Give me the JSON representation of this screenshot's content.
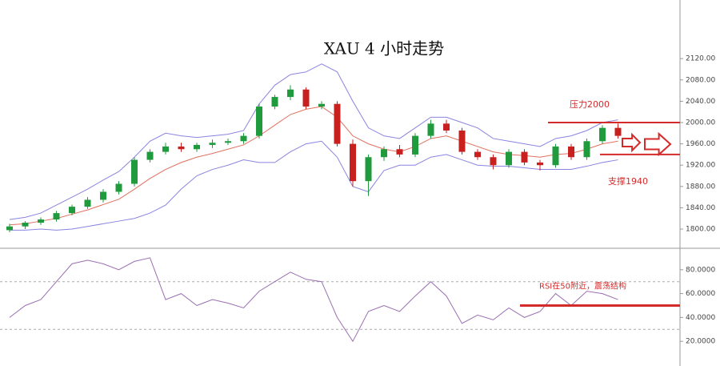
{
  "chart_data": [
    {
      "type": "candlestick",
      "title": "XAU  4 小时走势",
      "up_color": "#1f9a3c",
      "down_color": "#c8201e",
      "open": [
        1798,
        1805,
        1812,
        1818,
        1830,
        1842,
        1855,
        1870,
        1885,
        1930,
        1945,
        1955,
        1950,
        1958,
        1962,
        1965,
        1975,
        2030,
        2048,
        2062,
        2030,
        2035,
        1960,
        1890,
        1935,
        1950,
        1940,
        1975,
        1998,
        1985,
        1945,
        1935,
        1920,
        1945,
        1925,
        1920,
        1955,
        1935,
        1965,
        1990
      ],
      "high": [
        1810,
        1815,
        1822,
        1834,
        1846,
        1860,
        1875,
        1890,
        1935,
        1950,
        1962,
        1962,
        1962,
        1968,
        1970,
        1980,
        2035,
        2052,
        2070,
        2066,
        2040,
        2040,
        1968,
        1940,
        1955,
        1958,
        1980,
        2005,
        2005,
        1990,
        1950,
        1940,
        1950,
        1950,
        1930,
        1960,
        1960,
        1970,
        1995,
        1998
      ],
      "low": [
        1794,
        1800,
        1808,
        1814,
        1826,
        1838,
        1850,
        1865,
        1880,
        1925,
        1940,
        1945,
        1945,
        1952,
        1958,
        1960,
        1970,
        2025,
        2042,
        2025,
        2025,
        1955,
        1880,
        1862,
        1928,
        1935,
        1935,
        1970,
        1980,
        1940,
        1930,
        1912,
        1915,
        1920,
        1910,
        1915,
        1930,
        1930,
        1960,
        1970
      ],
      "close": [
        1805,
        1812,
        1818,
        1830,
        1842,
        1855,
        1870,
        1885,
        1930,
        1945,
        1955,
        1950,
        1958,
        1962,
        1965,
        1975,
        2030,
        2048,
        2062,
        2030,
        2035,
        1960,
        1890,
        1935,
        1950,
        1940,
        1975,
        1998,
        1985,
        1945,
        1935,
        1920,
        1945,
        1925,
        1920,
        1955,
        1935,
        1965,
        1990,
        1975
      ],
      "overlays": [
        {
          "color": "#e0705e",
          "values": [
            1808,
            1810,
            1815,
            1820,
            1828,
            1836,
            1846,
            1856,
            1875,
            1895,
            1912,
            1925,
            1935,
            1942,
            1950,
            1958,
            1975,
            1995,
            2015,
            2025,
            2030,
            2010,
            1975,
            1960,
            1950,
            1945,
            1955,
            1970,
            1975,
            1965,
            1955,
            1945,
            1940,
            1938,
            1935,
            1940,
            1942,
            1950,
            1960,
            1965
          ]
        },
        {
          "color": "#8a84e0",
          "values": [
            1818,
            1822,
            1830,
            1845,
            1860,
            1875,
            1892,
            1908,
            1935,
            1965,
            1980,
            1975,
            1972,
            1975,
            1978,
            1985,
            2035,
            2070,
            2090,
            2095,
            2110,
            2095,
            2040,
            1990,
            1975,
            1970,
            1990,
            2010,
            2010,
            2000,
            1990,
            1970,
            1965,
            1960,
            1955,
            1970,
            1975,
            1985,
            2000,
            2005
          ]
        },
        {
          "color": "#8a84e0",
          "values": [
            1798,
            1798,
            1800,
            1798,
            1800,
            1805,
            1810,
            1815,
            1820,
            1830,
            1845,
            1875,
            1900,
            1912,
            1920,
            1930,
            1925,
            1925,
            1945,
            1960,
            1965,
            1935,
            1880,
            1870,
            1910,
            1920,
            1920,
            1935,
            1940,
            1930,
            1920,
            1918,
            1918,
            1915,
            1912,
            1912,
            1912,
            1918,
            1925,
            1930
          ]
        }
      ],
      "ylim": [
        1767,
        2230
      ],
      "yticks": [
        {
          "value": 1800,
          "label": "1800.00"
        },
        {
          "value": 1840,
          "label": "1840.00"
        },
        {
          "value": 1880,
          "label": "1880.00"
        },
        {
          "value": 1920,
          "label": "1920.00"
        },
        {
          "value": 1960,
          "label": "1960.00"
        },
        {
          "value": 2000,
          "label": "2000.00"
        },
        {
          "value": 2040,
          "label": "2040.00"
        },
        {
          "value": 2080,
          "label": "2080.00"
        },
        {
          "value": 2120,
          "label": "2120.00"
        }
      ],
      "resistance": {
        "value": 2000,
        "label": "压力2000"
      },
      "support": {
        "value": 1940,
        "label": "支撑1940"
      },
      "annotation_color": "#d42a2a"
    },
    {
      "type": "line",
      "color": "#9a6fb0",
      "values": [
        40,
        50,
        55,
        70,
        85,
        88,
        85,
        80,
        87,
        90,
        55,
        60,
        50,
        55,
        52,
        48,
        62,
        70,
        78,
        72,
        70,
        40,
        20,
        45,
        50,
        45,
        58,
        70,
        58,
        35,
        42,
        38,
        48,
        40,
        45,
        60,
        50,
        62,
        60,
        55
      ],
      "ylim": [
        4,
        98
      ],
      "yticks": [
        {
          "value": 20,
          "label": "20.0000"
        },
        {
          "value": 40,
          "label": "40.0000"
        },
        {
          "value": 60,
          "label": "60.0000"
        },
        {
          "value": 80,
          "label": "80.0000"
        }
      ],
      "bands": [
        30,
        70
      ],
      "reference": {
        "value": 50,
        "label": "RSI在50附近，震荡结构"
      }
    }
  ]
}
